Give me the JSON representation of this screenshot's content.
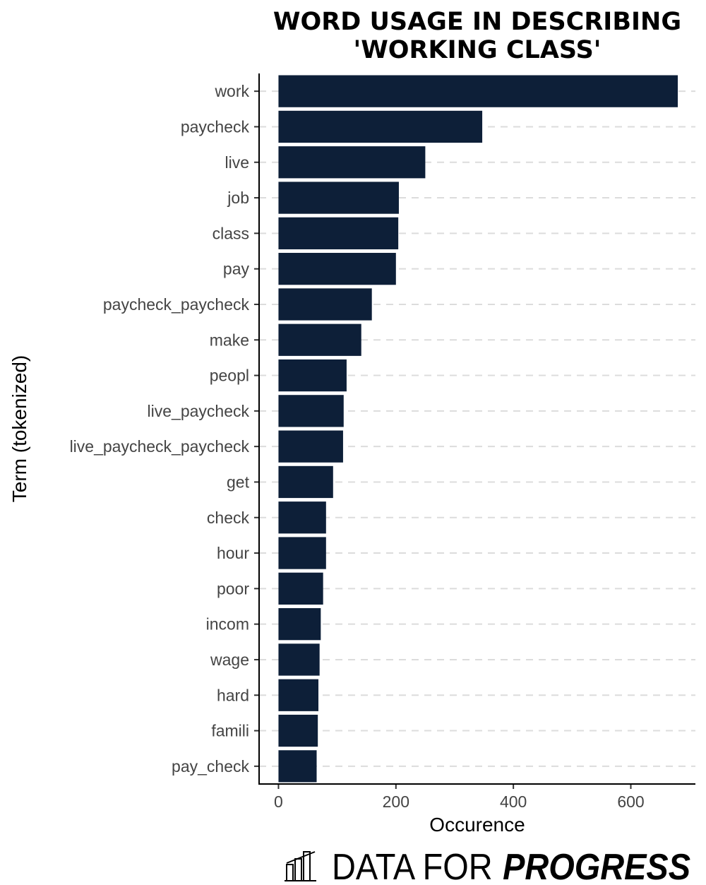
{
  "chart_data": {
    "type": "bar",
    "orientation": "horizontal",
    "title_lines": [
      "WORD USAGE IN DESCRIBING",
      "'WORKING CLASS'"
    ],
    "xlabel": "Occurence",
    "ylabel": "Term (tokenized)",
    "categories": [
      "work",
      "paycheck",
      "live",
      "job",
      "class",
      "pay",
      "paycheck_paycheck",
      "make",
      "peopl",
      "live_paycheck",
      "live_paycheck_paycheck",
      "get",
      "check",
      "hour",
      "poor",
      "incom",
      "wage",
      "hard",
      "famili",
      "pay_check"
    ],
    "values": [
      680,
      347,
      250,
      205,
      204,
      200,
      159,
      141,
      116,
      111,
      110,
      93,
      81,
      81,
      76,
      72,
      70,
      68,
      67,
      65
    ],
    "xlim": [
      -33,
      710
    ],
    "xticks": [
      0,
      200,
      400,
      600
    ],
    "grid": "dashed horizontal",
    "bar_color": "#0d1f38"
  },
  "brand": {
    "light": "DATA FOR",
    "bold": "PROGRESS",
    "icon": "bar-chart-logo-icon"
  }
}
